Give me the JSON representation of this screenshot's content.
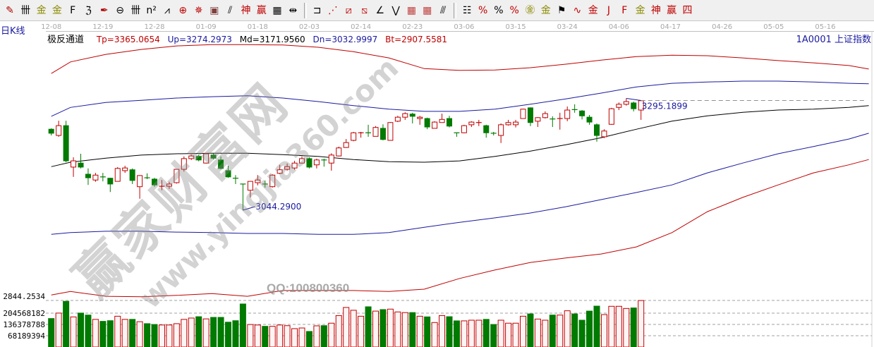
{
  "toolbar": {
    "groups": [
      [
        {
          "icon": "draw-pencil-icon",
          "glyph": "✎",
          "color": "#b00000"
        },
        {
          "icon": "parallel-lines-icon",
          "glyph": "卌",
          "color": "#000"
        },
        {
          "icon": "gold-section-icon",
          "glyph": "金",
          "color": "#8a8a00"
        },
        {
          "icon": "gold-ratio-icon",
          "glyph": "金",
          "color": "#8a8a00"
        },
        {
          "icon": "fibonacci-lines-icon",
          "glyph": "F",
          "color": "#000"
        },
        {
          "icon": "spiral-icon",
          "glyph": "ℨ",
          "color": "#000"
        },
        {
          "icon": "pen-tool-icon",
          "glyph": "✒",
          "color": "#b00000"
        },
        {
          "icon": "gann-circle-icon",
          "glyph": "⊖",
          "color": "#000"
        },
        {
          "icon": "cycle-lines-icon",
          "glyph": "卌",
          "color": "#000"
        },
        {
          "icon": "square-lines-icon",
          "glyph": "n²",
          "color": "#000"
        },
        {
          "icon": "fan-lines-icon",
          "glyph": "⩘",
          "color": "#000"
        },
        {
          "icon": "target-icon",
          "glyph": "⊕",
          "color": "#c00000"
        },
        {
          "icon": "compass-icon",
          "glyph": "✵",
          "color": "#c00000"
        },
        {
          "icon": "box-icon",
          "glyph": "▣",
          "color": "#804040"
        },
        {
          "icon": "speed-lines-icon",
          "glyph": "⫽",
          "color": "#000"
        },
        {
          "icon": "god-lines-icon",
          "glyph": "神",
          "color": "#c00000"
        },
        {
          "icon": "win-lines-icon",
          "glyph": "赢",
          "color": "#c00000"
        },
        {
          "icon": "ruler-icon",
          "glyph": "▦",
          "color": "#000"
        },
        {
          "icon": "measure-icon",
          "glyph": "⇹",
          "color": "#000"
        }
      ],
      [
        {
          "icon": "rectangle-icon",
          "glyph": "⊐",
          "color": "#000"
        },
        {
          "icon": "red-fan-icon",
          "glyph": "⋰",
          "color": "#c00000"
        },
        {
          "icon": "box-diagonal-icon",
          "glyph": "⧄",
          "color": "#c00000"
        },
        {
          "icon": "box-fan-icon",
          "glyph": "⧅",
          "color": "#c00000"
        },
        {
          "icon": "angle-icon",
          "glyph": "∠",
          "color": "#000"
        },
        {
          "icon": "wave-icon",
          "glyph": "⋁",
          "color": "#000"
        },
        {
          "icon": "grid-icon",
          "glyph": "▦",
          "color": "#c04040"
        },
        {
          "icon": "grid-box-icon",
          "glyph": "▦",
          "color": "#c04040"
        },
        {
          "icon": "stripes-icon",
          "glyph": "⫻",
          "color": "#000"
        }
      ],
      [
        {
          "icon": "list-icon",
          "glyph": "☷",
          "color": "#000"
        },
        {
          "icon": "percent-line-icon",
          "glyph": "%",
          "color": "#c00000"
        },
        {
          "icon": "percent-icon",
          "glyph": "%",
          "color": "#000"
        },
        {
          "icon": "percent-lines-icon",
          "glyph": "%",
          "color": "#c00000"
        },
        {
          "icon": "gold-coin-icon",
          "glyph": "㊎",
          "color": "#8a8a00"
        },
        {
          "icon": "gold-lines-icon",
          "glyph": "金",
          "color": "#8a8a00"
        },
        {
          "icon": "flag-icon",
          "glyph": "⚑",
          "color": "#000"
        },
        {
          "icon": "wave-lines-icon",
          "glyph": "∿",
          "color": "#c00000"
        },
        {
          "icon": "gold-bars-icon",
          "glyph": "金",
          "color": "#c00000"
        },
        {
          "icon": "j-angle-icon",
          "glyph": "J",
          "color": "#c00000"
        },
        {
          "icon": "f-angle-icon",
          "glyph": "F",
          "color": "#c00000"
        },
        {
          "icon": "gold-angle-icon",
          "glyph": "金",
          "color": "#8a8a00"
        },
        {
          "icon": "god-angle-icon",
          "glyph": "神",
          "color": "#c00000"
        },
        {
          "icon": "win-angle-icon",
          "glyph": "赢",
          "color": "#c00000"
        },
        {
          "icon": "four-angle-icon",
          "glyph": "四",
          "color": "#c00000"
        }
      ]
    ]
  },
  "header": {
    "period": "日K线",
    "indicator_name": "极反通道",
    "legend": [
      {
        "text": "Tp=3365.0654",
        "color": "#c00000"
      },
      {
        "text": "Up=3274.2973",
        "color": "#1a1aa0"
      },
      {
        "text": "Md=3171.9560",
        "color": "#000000"
      },
      {
        "text": "Dn=3032.9997",
        "color": "#1a1aa0"
      },
      {
        "text": "Bt=2907.5581",
        "color": "#c00000"
      }
    ],
    "symbol": "1A0001  上证指数"
  },
  "watermark": {
    "brand": "赢家财富网",
    "site": "www.yingjia360.com",
    "qq": "QQ:100800360"
  },
  "chart_data": {
    "type": "candlestick",
    "price_ylim": [
      2844.2534,
      3430
    ],
    "price_axis_label": "2844.2534",
    "x_tick_labels": [
      {
        "index": 0,
        "label": "12-08"
      },
      {
        "index": 7,
        "label": "12-19"
      },
      {
        "index": 14,
        "label": "12-28"
      },
      {
        "index": 21,
        "label": "01-09"
      },
      {
        "index": 28,
        "label": "01-18"
      },
      {
        "index": 35,
        "label": "02-03"
      },
      {
        "index": 42,
        "label": "02-14"
      },
      {
        "index": 49,
        "label": "02-23"
      },
      {
        "index": 56,
        "label": "03-06"
      },
      {
        "index": 63,
        "label": "03-15"
      },
      {
        "index": 70,
        "label": "03-24"
      },
      {
        "index": 77,
        "label": "04-06"
      },
      {
        "index": 84,
        "label": "04-17"
      },
      {
        "index": 91,
        "label": "04-26"
      },
      {
        "index": 98,
        "label": "05-05"
      },
      {
        "index": 105,
        "label": "05-16"
      }
    ],
    "ohlc_fields": [
      "open",
      "high",
      "low",
      "close"
    ],
    "candles": [
      [
        3226,
        3228,
        3212,
        3217
      ],
      [
        3212,
        3245,
        3209,
        3234
      ],
      [
        3234,
        3245,
        3152,
        3155
      ],
      [
        3141,
        3163,
        3119,
        3155
      ],
      [
        3150,
        3171,
        3138,
        3141
      ],
      [
        3125,
        3138,
        3101,
        3117
      ],
      [
        3112,
        3128,
        3108,
        3123
      ],
      [
        3119,
        3128,
        3109,
        3117
      ],
      [
        3116,
        3117,
        3085,
        3103
      ],
      [
        3109,
        3141,
        3109,
        3138
      ],
      [
        3133,
        3144,
        3128,
        3139
      ],
      [
        3135,
        3138,
        3103,
        3111
      ],
      [
        3097,
        3123,
        3070,
        3122
      ],
      [
        3117,
        3127,
        3114,
        3116
      ],
      [
        3114,
        3117,
        3097,
        3101
      ],
      [
        3096,
        3112,
        3089,
        3098
      ],
      [
        3098,
        3108,
        3092,
        3103
      ],
      [
        3106,
        3136,
        3104,
        3136
      ],
      [
        3136,
        3165,
        3131,
        3160
      ],
      [
        3160,
        3169,
        3157,
        3166
      ],
      [
        3165,
        3169,
        3154,
        3157
      ],
      [
        3150,
        3172,
        3149,
        3171
      ],
      [
        3168,
        3172,
        3158,
        3161
      ],
      [
        3157,
        3165,
        3136,
        3138
      ],
      [
        3133,
        3144,
        3117,
        3119
      ],
      [
        3116,
        3123,
        3103,
        3114
      ],
      [
        3103,
        3103,
        3044.29,
        3101
      ],
      [
        3089,
        3109,
        3073,
        3109
      ],
      [
        3106,
        3123,
        3100,
        3112
      ],
      [
        3103,
        3111,
        3095,
        3101
      ],
      [
        3097,
        3125,
        3095,
        3123
      ],
      [
        3127,
        3146,
        3125,
        3135
      ],
      [
        3136,
        3149,
        3133,
        3142
      ],
      [
        3139,
        3155,
        3135,
        3150
      ],
      [
        3150,
        3165,
        3149,
        3160
      ],
      [
        3160,
        3163,
        3138,
        3141
      ],
      [
        3146,
        3160,
        3138,
        3157
      ],
      [
        3157,
        3160,
        3142,
        3155
      ],
      [
        3150,
        3172,
        3133,
        3168
      ],
      [
        3166,
        3187,
        3165,
        3184
      ],
      [
        3185,
        3204,
        3184,
        3196
      ],
      [
        3201,
        3220,
        3199,
        3218
      ],
      [
        3217,
        3220,
        3207,
        3218
      ],
      [
        3218,
        3236,
        3209,
        3217
      ],
      [
        3210,
        3233,
        3210,
        3230
      ],
      [
        3228,
        3237,
        3201,
        3203
      ],
      [
        3201,
        3242,
        3201,
        3241
      ],
      [
        3244,
        3256,
        3242,
        3253
      ],
      [
        3253,
        3264,
        3247,
        3261
      ],
      [
        3260,
        3263,
        3239,
        3255
      ],
      [
        3250,
        3256,
        3236,
        3253
      ],
      [
        3250,
        3252,
        3226,
        3231
      ],
      [
        3228,
        3244,
        3228,
        3242
      ],
      [
        3241,
        3261,
        3241,
        3248
      ],
      [
        3250,
        3256,
        3230,
        3233
      ],
      [
        3218,
        3218,
        3209,
        3217
      ],
      [
        3218,
        3236,
        3217,
        3234
      ],
      [
        3236,
        3244,
        3231,
        3242
      ],
      [
        3240,
        3247,
        3233,
        3241
      ],
      [
        3234,
        3236,
        3207,
        3218
      ],
      [
        3217,
        3220,
        3212,
        3216
      ],
      [
        3212,
        3239,
        3195,
        3236
      ],
      [
        3236,
        3247,
        3234,
        3241
      ],
      [
        3236,
        3247,
        3230,
        3242
      ],
      [
        3250,
        3272,
        3250,
        3271
      ],
      [
        3274,
        3275,
        3233,
        3241
      ],
      [
        3244,
        3253,
        3231,
        3252
      ],
      [
        3252,
        3266,
        3250,
        3261
      ],
      [
        3249,
        3255,
        3231,
        3248
      ],
      [
        3249,
        3263,
        3225,
        3250
      ],
      [
        3250,
        3277,
        3244,
        3269
      ],
      [
        3270,
        3282,
        3263,
        3269
      ],
      [
        3267,
        3269,
        3248,
        3256
      ],
      [
        3253,
        3258,
        3236,
        3242
      ],
      [
        3236,
        3239,
        3198,
        3212
      ],
      [
        3209,
        3226,
        3206,
        3222
      ],
      [
        3237,
        3274,
        3236,
        3272
      ],
      [
        3275,
        3286,
        3269,
        3282
      ],
      [
        3282,
        3295.19,
        3279,
        3288
      ],
      [
        3285,
        3288,
        3266,
        3272
      ],
      [
        3269,
        3291,
        3247,
        3290
      ]
    ],
    "volume_millions": [
      172,
      205,
      276,
      182,
      205,
      193,
      167,
      155,
      159,
      186,
      167,
      167,
      153,
      141,
      136,
      133,
      133,
      141,
      167,
      175,
      183,
      170,
      179,
      179,
      150,
      159,
      260,
      136,
      133,
      125,
      125,
      133,
      129,
      111,
      115,
      94,
      128,
      129,
      144,
      190,
      239,
      222,
      186,
      243,
      217,
      226,
      229,
      212,
      208,
      208,
      186,
      182,
      148,
      190,
      183,
      158,
      158,
      162,
      162,
      167,
      136,
      162,
      144,
      144,
      186,
      200,
      169,
      162,
      193,
      193,
      219,
      200,
      162,
      217,
      247,
      196,
      246,
      246,
      233,
      236,
      281
    ],
    "volume_axis_labels": [
      "204568182",
      "136378788",
      "68189394"
    ],
    "volume_axis_values": [
      204568182,
      136378788,
      68189394
    ],
    "annotations": [
      {
        "label": "3044.2900",
        "index": 26,
        "price": 3044.29,
        "type": "low"
      },
      {
        "label": "3295.1899",
        "index": 78,
        "price": 3295.1899,
        "type": "high"
      }
    ],
    "bands": {
      "index": [
        0,
        2.6,
        7.4,
        12.2,
        17,
        21.8,
        26.6,
        31.4,
        36.2,
        41,
        45.8,
        50.6,
        55.4,
        60.2,
        65,
        69.8,
        74.6,
        79.4,
        84.2,
        89,
        93.8,
        98.6,
        103.4,
        108.2,
        110.9
      ],
      "series": [
        {
          "name": "Tp",
          "color": "#c00000",
          "values": [
            3351,
            3377,
            3394,
            3405,
            3413,
            3416,
            3416,
            3415,
            3410,
            3400,
            3386,
            3362,
            3358,
            3359,
            3364,
            3372,
            3381,
            3389,
            3392,
            3391,
            3386,
            3380,
            3375,
            3369,
            3361
          ]
        },
        {
          "name": "Up",
          "color": "#1a1aa0",
          "values": [
            3255,
            3275,
            3286,
            3291,
            3296,
            3299,
            3301,
            3296,
            3288,
            3279,
            3271,
            3266,
            3266,
            3271,
            3282,
            3294,
            3307,
            3321,
            3329,
            3332,
            3334,
            3334,
            3332,
            3329,
            3328
          ]
        },
        {
          "name": "Md",
          "color": "#000000",
          "values": [
            3142,
            3152,
            3161,
            3168,
            3171,
            3172,
            3172,
            3169,
            3165,
            3158,
            3153,
            3152,
            3155,
            3165,
            3177,
            3191,
            3207,
            3226,
            3244,
            3256,
            3264,
            3269,
            3271,
            3275,
            3279
          ]
        },
        {
          "name": "Dn",
          "color": "#1a1aa0",
          "values": [
            2990,
            2994,
            2997,
            2997,
            2995,
            2994,
            2992,
            2992,
            2990,
            2990,
            2994,
            3006,
            3017,
            3027,
            3038,
            3052,
            3068,
            3084,
            3101,
            3128,
            3150,
            3171,
            3187,
            3204,
            3217
          ]
        },
        {
          "name": "Bt",
          "color": "#c00000",
          "values": [
            2854,
            2862,
            2851,
            2850,
            2853,
            2857,
            2851,
            2864,
            2864,
            2864,
            2862,
            2867,
            2891,
            2910,
            2927,
            2937,
            2946,
            2962,
            2994,
            3041,
            3073,
            3101,
            3128,
            3146,
            3158
          ]
        }
      ]
    },
    "colors": {
      "up": "#c00000",
      "down": "#007a00",
      "grid": "#a0a0a0",
      "label": "#1a1aa0",
      "date": "#a8a8a8"
    }
  }
}
